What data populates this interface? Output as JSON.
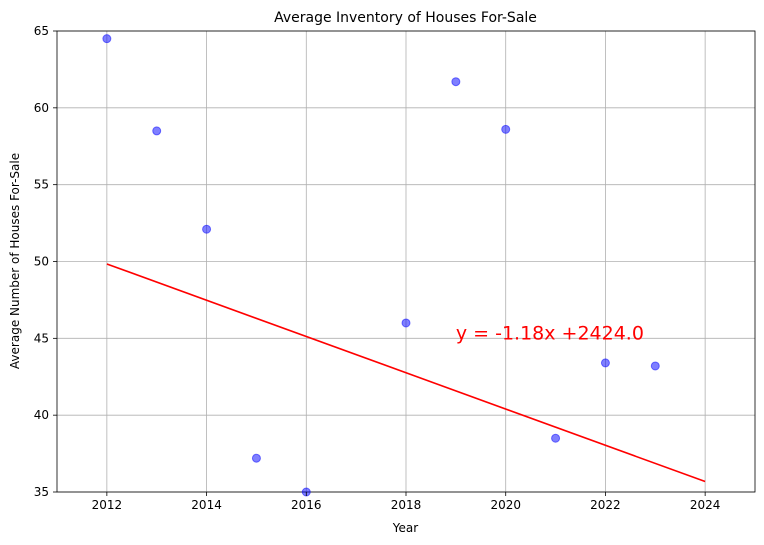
{
  "chart_data": {
    "type": "scatter",
    "title": "Average Inventory of Houses For-Sale",
    "xlabel": "Year",
    "ylabel": "Average Number of Houses For-Sale",
    "xlim": [
      2011,
      2025
    ],
    "ylim": [
      35,
      65
    ],
    "xticks": [
      2012,
      2014,
      2016,
      2018,
      2020,
      2022,
      2024
    ],
    "yticks": [
      35,
      40,
      45,
      50,
      55,
      60,
      65
    ],
    "grid": true,
    "points": [
      {
        "x": 2012,
        "y": 64.5
      },
      {
        "x": 2013,
        "y": 58.5
      },
      {
        "x": 2014,
        "y": 52.1
      },
      {
        "x": 2015,
        "y": 37.2
      },
      {
        "x": 2016,
        "y": 35.0
      },
      {
        "x": 2018,
        "y": 46.0
      },
      {
        "x": 2019,
        "y": 61.7
      },
      {
        "x": 2020,
        "y": 58.6
      },
      {
        "x": 2021,
        "y": 38.5
      },
      {
        "x": 2022,
        "y": 43.4
      },
      {
        "x": 2023,
        "y": 43.2
      }
    ],
    "point_color": "#0000ff",
    "regression": {
      "slope": -1.18,
      "intercept": 2424.0,
      "x_start": 2012,
      "x_end": 2024,
      "color": "#ff0000",
      "equation_label": "y = -1.18x +2424.0",
      "label_x": 2019,
      "label_y": 45
    }
  }
}
